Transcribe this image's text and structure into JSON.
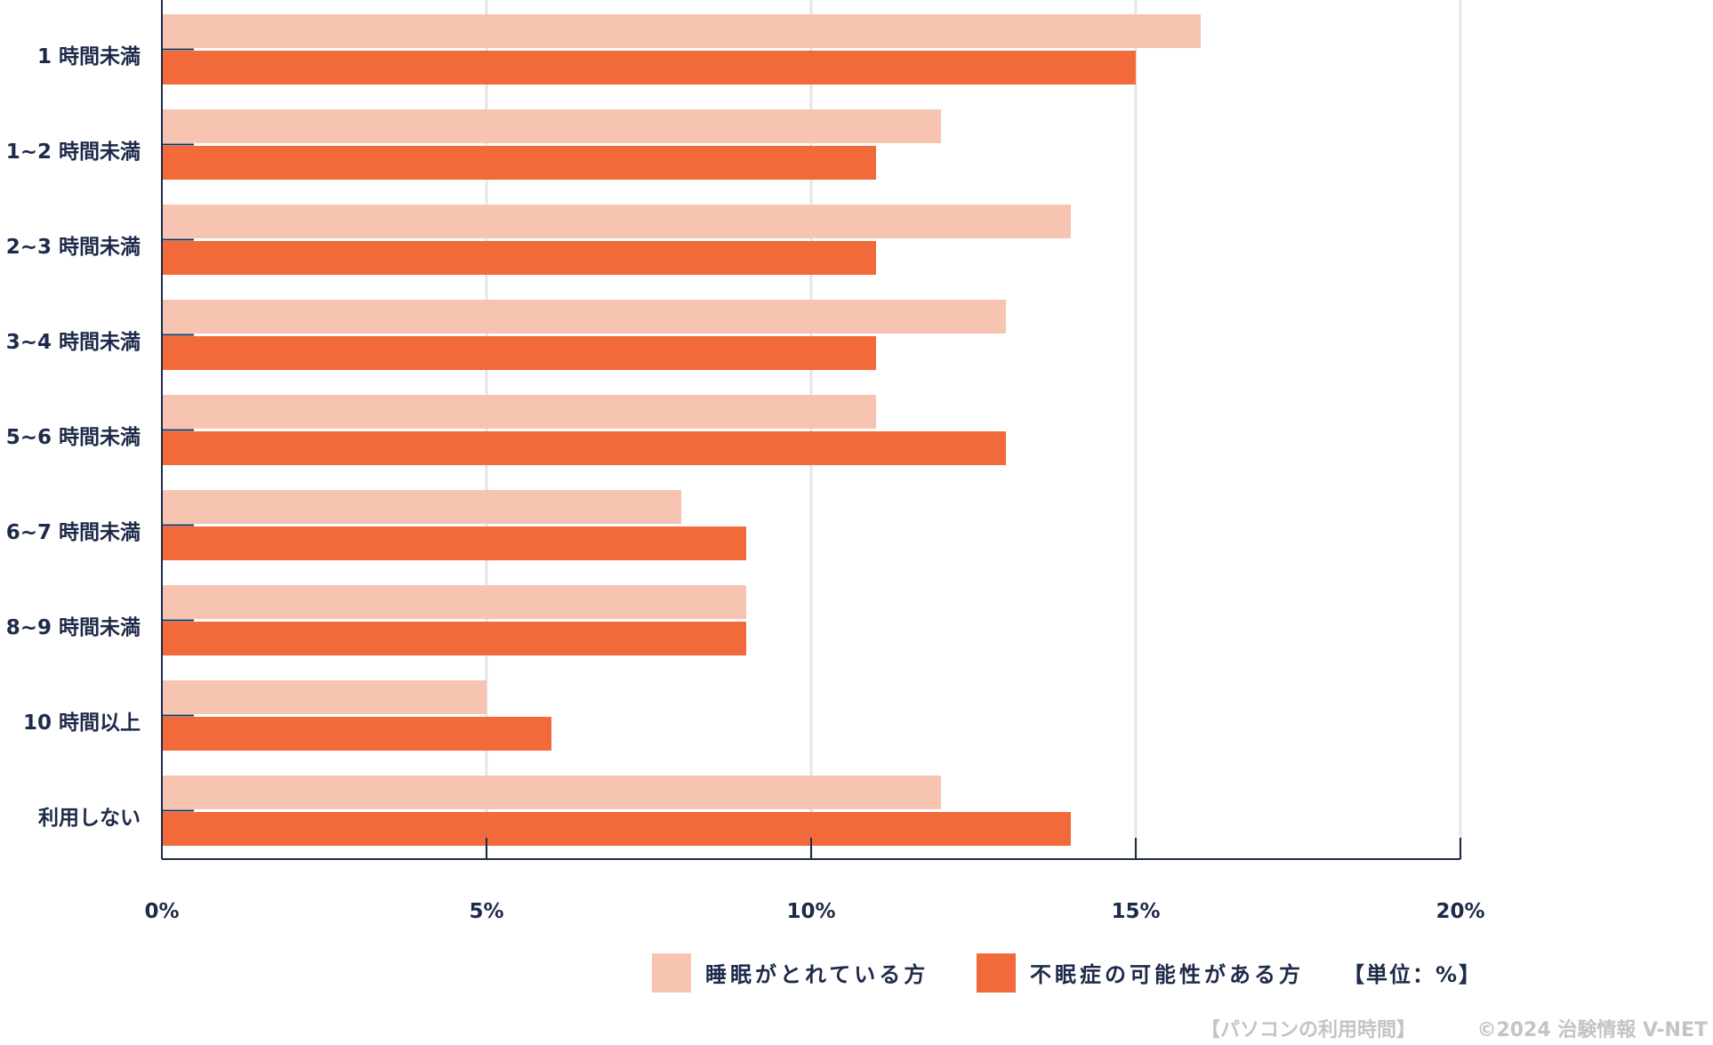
{
  "colors": {
    "series_light": "#f8c4b2",
    "series_dark": "#f26a3a",
    "axis": "#1e2a4a",
    "grid": "#e6e6e6",
    "footer": "#c4c4c4"
  },
  "chart_data": {
    "type": "bar",
    "orientation": "horizontal",
    "categories": [
      "1 時間未満",
      "1~2 時間未満",
      "2~3 時間未満",
      "3~4 時間未満",
      "5~6 時間未満",
      "6~7 時間未満",
      "8~9 時間未満",
      "10 時間以上",
      "利用しない"
    ],
    "series": [
      {
        "name": "睡眠がとれている方",
        "values": [
          16,
          12,
          14,
          13,
          11,
          8,
          9,
          5,
          12
        ]
      },
      {
        "name": "不眠症の可能性がある方",
        "values": [
          15,
          11,
          11,
          11,
          13,
          9,
          9,
          6,
          14
        ]
      }
    ],
    "xlim": [
      0,
      20
    ],
    "xticks": [
      0,
      5,
      10,
      15,
      20
    ],
    "xtick_labels": [
      "0%",
      "5%",
      "10%",
      "15%",
      "20%"
    ],
    "grid": true,
    "legend_position": "bottom",
    "unit_note": "【単位：%】"
  },
  "footer": {
    "caption": "【パソコンの利用時間】",
    "credit": "©2024 治験情報 V-NET"
  }
}
